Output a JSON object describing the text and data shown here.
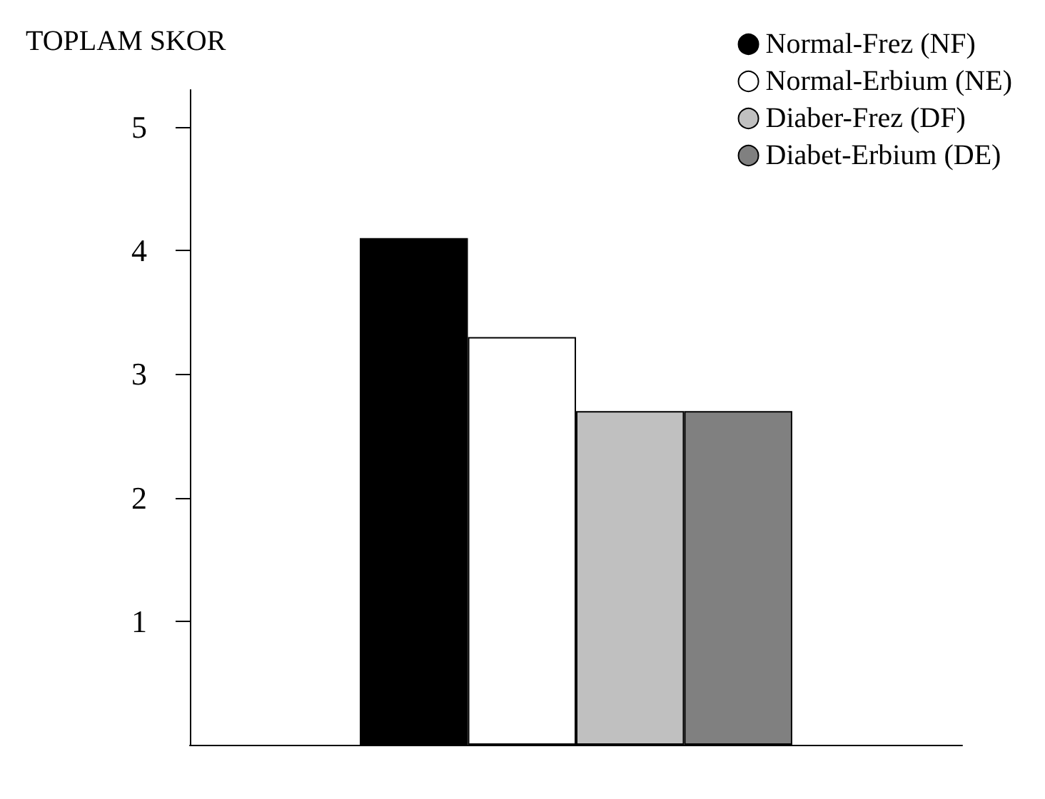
{
  "chart_data": {
    "type": "bar",
    "title": "TOPLAM SKOR",
    "categories": [
      null
    ],
    "series": [
      {
        "name": "Normal-Frez (NF)",
        "color": "#000000",
        "values": [
          4.1
        ]
      },
      {
        "name": "Normal-Erbium (NE)",
        "color": "#ffffff",
        "values": [
          3.3
        ]
      },
      {
        "name": "Diaber-Frez (DF)",
        "color": "#c0c0c0",
        "values": [
          2.7
        ]
      },
      {
        "name": "Diabet-Erbium (DE)",
        "color": "#808080",
        "values": [
          2.7
        ]
      }
    ],
    "ylim": [
      0,
      5.3
    ],
    "yticks": [
      1,
      2,
      3,
      4,
      5
    ],
    "grid": false,
    "legend": "top right"
  }
}
